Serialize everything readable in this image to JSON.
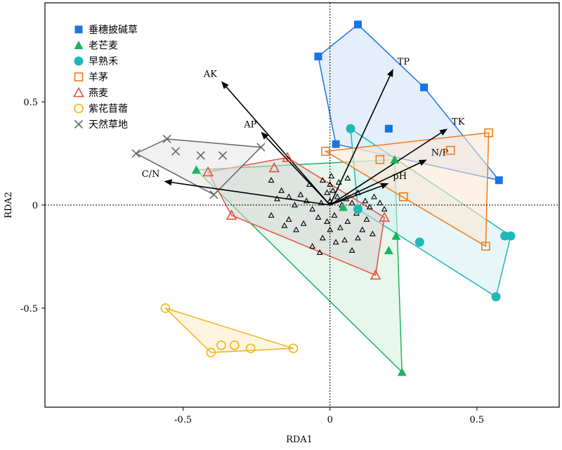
{
  "chart_data": {
    "type": "scatter",
    "title": "",
    "xlabel": "RDA1",
    "ylabel": "RDA2",
    "xlim": [
      -0.97,
      0.78
    ],
    "ylim": [
      -0.98,
      0.98
    ],
    "xticks": [
      -0.5,
      0,
      0.5
    ],
    "yticks": [
      -0.5,
      0,
      0.5
    ],
    "xtick_labels": [
      "-0.5",
      "0",
      "0.5"
    ],
    "ytick_labels": [
      "-0.5",
      "0",
      "0.5"
    ],
    "reference_lines": {
      "x": 0,
      "y": 0,
      "style": "dotted"
    },
    "legend_position": "top-left",
    "series": [
      {
        "name": "垂穗披碱草",
        "marker": "square-filled",
        "color": "#1a73e8",
        "fill": "#cfe2f8",
        "points": [
          [
            -0.04,
            0.72
          ],
          [
            0.095,
            0.875
          ],
          [
            0.32,
            0.57
          ],
          [
            0.575,
            0.12
          ],
          [
            0.02,
            0.295
          ],
          [
            0.2,
            0.37
          ]
        ],
        "hull": [
          [
            -0.04,
            0.72
          ],
          [
            0.095,
            0.875
          ],
          [
            0.32,
            0.57
          ],
          [
            0.575,
            0.12
          ],
          [
            0.02,
            0.295
          ]
        ]
      },
      {
        "name": "老芒麦",
        "marker": "triangle-filled",
        "color": "#1db360",
        "fill": "#d6f0df",
        "points": [
          [
            -0.455,
            0.17
          ],
          [
            0.22,
            0.22
          ],
          [
            0.045,
            -0.01
          ],
          [
            0.225,
            -0.15
          ],
          [
            0.2,
            -0.22
          ],
          [
            0.245,
            -0.81
          ]
        ],
        "hull": [
          [
            -0.455,
            0.17
          ],
          [
            0.22,
            0.22
          ],
          [
            0.245,
            -0.81
          ]
        ]
      },
      {
        "name": "早熟禾",
        "marker": "circle-filled",
        "color": "#1fb8b8",
        "fill": "#d4f1f1",
        "points": [
          [
            0.07,
            0.37
          ],
          [
            0.095,
            -0.02
          ],
          [
            0.305,
            -0.18
          ],
          [
            0.595,
            -0.15
          ],
          [
            0.615,
            -0.15
          ],
          [
            0.565,
            -0.445
          ]
        ],
        "hull": [
          [
            0.07,
            0.37
          ],
          [
            0.615,
            -0.15
          ],
          [
            0.565,
            -0.445
          ],
          [
            0.095,
            -0.02
          ]
        ]
      },
      {
        "name": "羊茅",
        "marker": "square-open",
        "color": "#f07c1e",
        "fill": "#fde6d2",
        "points": [
          [
            -0.015,
            0.26
          ],
          [
            0.17,
            0.22
          ],
          [
            0.41,
            0.265
          ],
          [
            0.54,
            0.35
          ],
          [
            0.25,
            0.04
          ],
          [
            0.53,
            -0.2
          ]
        ],
        "hull": [
          [
            -0.015,
            0.26
          ],
          [
            0.54,
            0.35
          ],
          [
            0.53,
            -0.2
          ]
        ]
      },
      {
        "name": "燕麦",
        "marker": "triangle-open",
        "color": "#e8503a",
        "fill": "#d6d6d6",
        "points": [
          [
            -0.415,
            0.16
          ],
          [
            -0.19,
            0.18
          ],
          [
            -0.145,
            0.23
          ],
          [
            -0.335,
            -0.05
          ],
          [
            0.155,
            -0.34
          ],
          [
            0.185,
            -0.06
          ]
        ],
        "hull": [
          [
            -0.415,
            0.16
          ],
          [
            -0.145,
            0.23
          ],
          [
            0.185,
            -0.06
          ],
          [
            0.155,
            -0.34
          ],
          [
            -0.335,
            -0.05
          ]
        ]
      },
      {
        "name": "紫花苜蓿",
        "marker": "circle-open",
        "color": "#f2b318",
        "fill": "#fbedc6",
        "points": [
          [
            -0.56,
            -0.5
          ],
          [
            -0.405,
            -0.715
          ],
          [
            -0.37,
            -0.68
          ],
          [
            -0.325,
            -0.68
          ],
          [
            -0.27,
            -0.695
          ],
          [
            -0.125,
            -0.695
          ]
        ],
        "hull": [
          [
            -0.56,
            -0.5
          ],
          [
            -0.125,
            -0.695
          ],
          [
            -0.405,
            -0.715
          ]
        ]
      },
      {
        "name": "天然草地",
        "marker": "cross",
        "color": "#666666",
        "fill": "#e6e6e6",
        "points": [
          [
            -0.66,
            0.25
          ],
          [
            -0.555,
            0.32
          ],
          [
            -0.525,
            0.26
          ],
          [
            -0.44,
            0.24
          ],
          [
            -0.365,
            0.24
          ],
          [
            -0.235,
            0.28
          ],
          [
            -0.395,
            0.05
          ]
        ],
        "hull": [
          [
            -0.66,
            0.25
          ],
          [
            -0.555,
            0.32
          ],
          [
            -0.235,
            0.28
          ],
          [
            -0.395,
            0.05
          ]
        ]
      }
    ],
    "small_markers": [
      [
        -0.2,
        0.12
      ],
      [
        -0.165,
        0.07
      ],
      [
        -0.14,
        0.04
      ],
      [
        -0.12,
        0.0
      ],
      [
        -0.1,
        0.05
      ],
      [
        -0.08,
        0.02
      ],
      [
        -0.06,
        -0.02
      ],
      [
        -0.03,
        0.01
      ],
      [
        -0.01,
        0.06
      ],
      [
        0.0,
        0.02
      ],
      [
        0.01,
        0.07
      ],
      [
        0.025,
        0.04
      ],
      [
        0.04,
        0.0
      ],
      [
        0.055,
        0.03
      ],
      [
        0.075,
        0.01
      ],
      [
        0.095,
        0.06
      ],
      [
        0.12,
        0.02
      ],
      [
        0.135,
        -0.01
      ],
      [
        0.15,
        0.04
      ],
      [
        0.17,
        0.01
      ],
      [
        0.185,
        -0.02
      ],
      [
        -0.07,
        0.1
      ],
      [
        -0.04,
        -0.06
      ],
      [
        -0.01,
        -0.08
      ],
      [
        0.015,
        -0.05
      ],
      [
        0.035,
        -0.11
      ],
      [
        0.06,
        -0.08
      ],
      [
        0.09,
        -0.04
      ],
      [
        0.11,
        -0.12
      ],
      [
        0.125,
        -0.07
      ],
      [
        0.145,
        -0.14
      ],
      [
        -0.09,
        -0.09
      ],
      [
        -0.115,
        -0.12
      ],
      [
        -0.14,
        -0.07
      ],
      [
        -0.025,
        -0.16
      ],
      [
        0.0,
        -0.12
      ],
      [
        0.05,
        -0.17
      ],
      [
        0.095,
        -0.16
      ],
      [
        -0.06,
        -0.2
      ],
      [
        -0.035,
        -0.23
      ],
      [
        0.02,
        -0.18
      ],
      [
        0.075,
        -0.22
      ],
      [
        -0.18,
        0.03
      ],
      [
        -0.155,
        -0.1
      ],
      [
        -0.2,
        -0.05
      ],
      [
        0.0,
        0.1
      ],
      [
        0.03,
        0.11
      ],
      [
        0.06,
        0.13
      ],
      [
        -0.025,
        0.12
      ],
      [
        0.005,
        0.14
      ]
    ],
    "vectors": [
      {
        "name": "AK",
        "x": -0.37,
        "y": 0.6
      },
      {
        "name": "AP",
        "x": -0.235,
        "y": 0.355
      },
      {
        "name": "TP",
        "x": 0.215,
        "y": 0.66
      },
      {
        "name": "TK",
        "x": 0.4,
        "y": 0.37
      },
      {
        "name": "N/P",
        "x": 0.33,
        "y": 0.22
      },
      {
        "name": "pH",
        "x": 0.2,
        "y": 0.105
      },
      {
        "name": "C/N",
        "x": -0.565,
        "y": 0.115
      }
    ]
  }
}
